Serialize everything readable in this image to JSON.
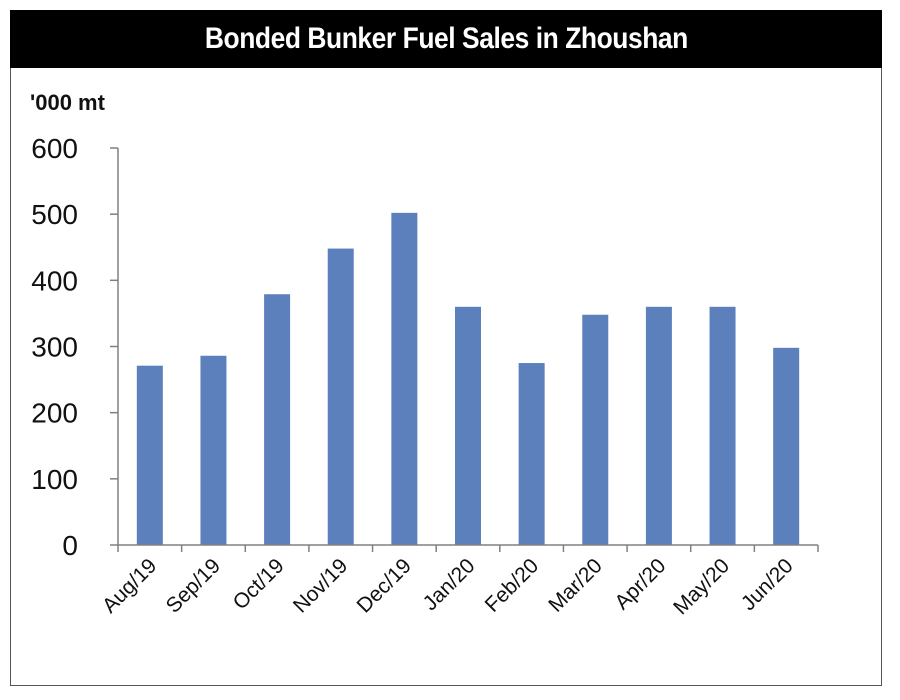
{
  "chart_data": {
    "type": "bar",
    "title": "Bonded Bunker Fuel Sales in Zhoushan",
    "ylabel": "'000 mt",
    "xlabel": "",
    "categories": [
      "Aug/19",
      "Sep/19",
      "Oct/19",
      "Nov/19",
      "Dec/19",
      "Jan/20",
      "Feb/20",
      "Mar/20",
      "Apr/20",
      "May/20",
      "Jun/20"
    ],
    "values": [
      271,
      286,
      379,
      448,
      502,
      360,
      275,
      348,
      360,
      360,
      298
    ],
    "ylim": [
      0,
      600
    ],
    "yticks": [
      "0",
      "100",
      "200",
      "300",
      "400",
      "500",
      "600"
    ],
    "grid": false,
    "bar_color": "#5b80bb"
  }
}
